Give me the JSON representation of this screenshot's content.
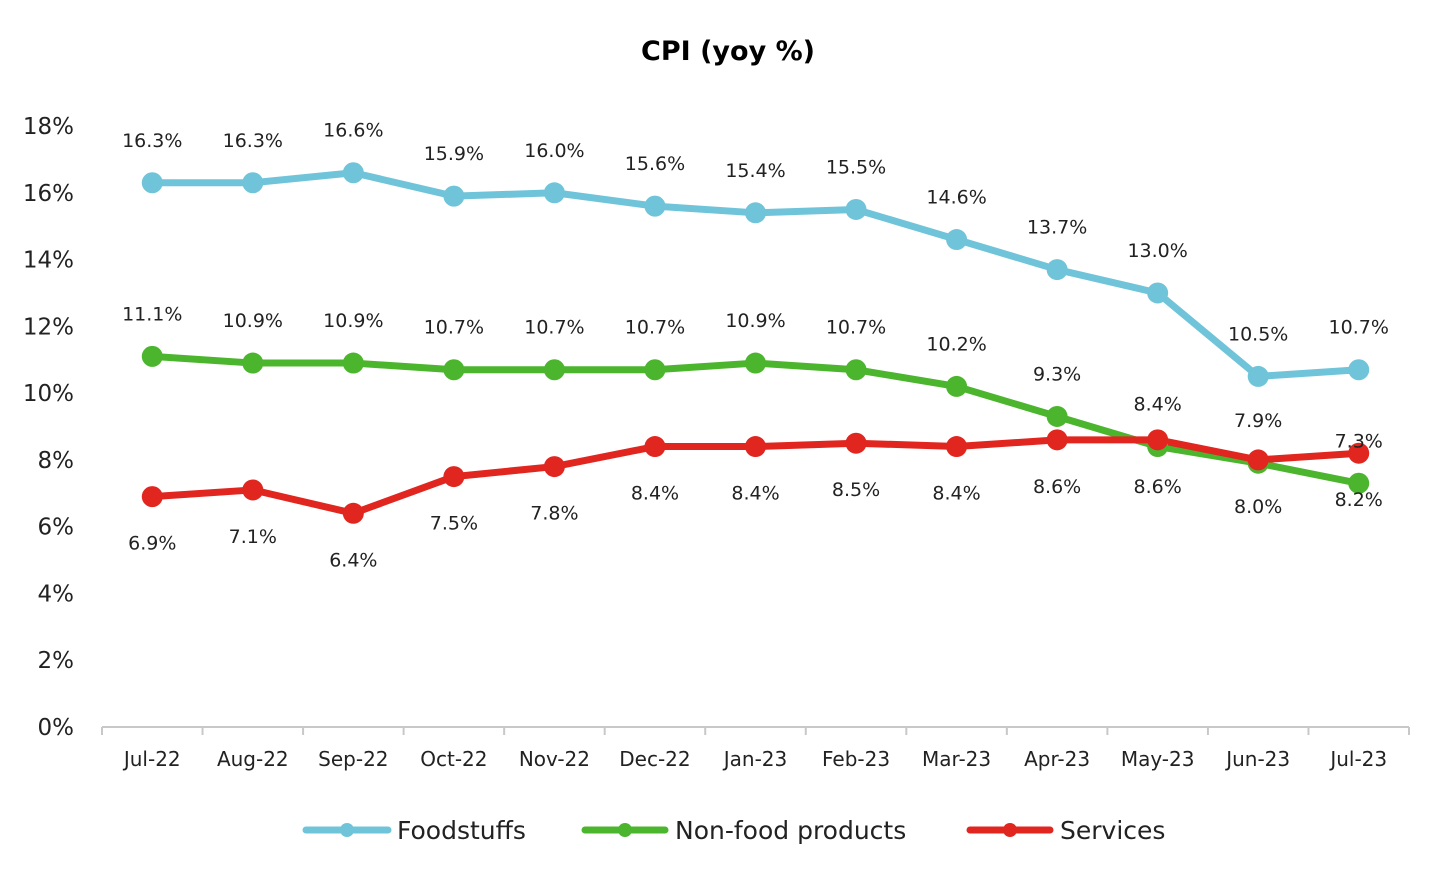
{
  "chart_data": {
    "type": "line",
    "title": "CPI (yoy %)",
    "xlabel": "",
    "ylabel": "",
    "categories": [
      "Jul-22",
      "Aug-22",
      "Sep-22",
      "Oct-22",
      "Nov-22",
      "Dec-22",
      "Jan-23",
      "Feb-23",
      "Mar-23",
      "Apr-23",
      "May-23",
      "Jun-23",
      "Jul-23"
    ],
    "ylim": [
      0,
      18
    ],
    "yticks": [
      "0%",
      "2%",
      "4%",
      "6%",
      "8%",
      "10%",
      "12%",
      "14%",
      "16%",
      "18%"
    ],
    "grid": false,
    "legend_position": "bottom",
    "series": [
      {
        "name": "Foodstuffs",
        "color": "#70C4D9",
        "values": [
          16.3,
          16.3,
          16.6,
          15.9,
          16.0,
          15.6,
          15.4,
          15.5,
          14.6,
          13.7,
          13.0,
          10.5,
          10.7
        ],
        "labels": [
          "16.3%",
          "16.3%",
          "16.6%",
          "15.9%",
          "16.0%",
          "15.6%",
          "15.4%",
          "15.5%",
          "14.6%",
          "13.7%",
          "13.0%",
          "10.5%",
          "10.7%"
        ]
      },
      {
        "name": "Non-food products",
        "color": "#4CB52E",
        "values": [
          11.1,
          10.9,
          10.9,
          10.7,
          10.7,
          10.7,
          10.9,
          10.7,
          10.2,
          9.3,
          8.4,
          7.9,
          7.3
        ],
        "labels": [
          "11.1%",
          "10.9%",
          "10.9%",
          "10.7%",
          "10.7%",
          "10.7%",
          "10.9%",
          "10.7%",
          "10.2%",
          "9.3%",
          "8.4%",
          "7.9%",
          "7.3%"
        ]
      },
      {
        "name": "Services",
        "color": "#E0261F",
        "values": [
          6.9,
          7.1,
          6.4,
          7.5,
          7.8,
          8.4,
          8.4,
          8.5,
          8.4,
          8.6,
          8.6,
          8.0,
          8.2
        ],
        "labels": [
          "6.9%",
          "7.1%",
          "6.4%",
          "7.5%",
          "7.8%",
          "8.4%",
          "8.4%",
          "8.5%",
          "8.4%",
          "8.6%",
          "8.6%",
          "8.0%",
          "8.2%"
        ]
      }
    ]
  }
}
